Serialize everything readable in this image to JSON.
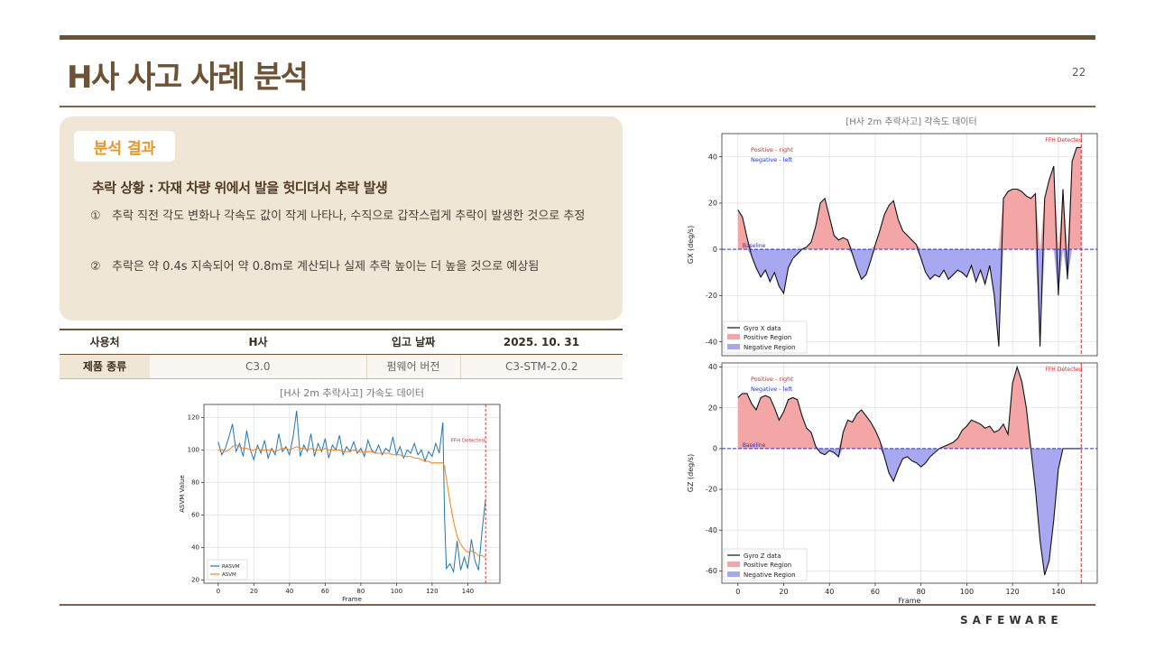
{
  "slide": {
    "title": "H사 사고 사례 분석",
    "page_number": "22",
    "brand": "SAFEWARE"
  },
  "analysis": {
    "badge": "분석 결과",
    "heading": "추락 상황 : 자재 차량 위에서 발을 헛디뎌서 추락 발생",
    "items": [
      {
        "num": "①",
        "text": "추락 직전 각도 변화나 각속도 값이 작게 나타나, 수직으로 갑작스럽게 추락이 발생한 것으로 추정"
      },
      {
        "num": "②",
        "text": "추락은 약 0.4s 지속되어 약 0.8m로 계산되나 실제 추락 높이는 더 높을 것으로 예상됨"
      }
    ]
  },
  "info_table": {
    "row1": [
      "사용처",
      "H사",
      "입고 날짜",
      "2025. 10. 31"
    ],
    "row2": [
      "제품 종류",
      "C3.0",
      "펌웨어 버전",
      "C3-STM-2.0.2"
    ]
  },
  "colors": {
    "accent_brown": "#6e5234",
    "badge_orange": "#e8962a",
    "panel_bg": "#efe6d6",
    "series_blue": "#1f77b4",
    "series_orange": "#ff7f0e",
    "positive_fill": "#f4a6a6",
    "negative_fill": "#a8a8f0"
  },
  "chart_data": [
    {
      "type": "line",
      "title": "[H사 2m 추락사고] 가속도 데이터",
      "xlabel": "Frame",
      "ylabel": "ASVM Value",
      "xlim": [
        -8,
        158
      ],
      "ylim": [
        18,
        128
      ],
      "xticks": [
        0,
        20,
        40,
        60,
        80,
        100,
        120,
        140
      ],
      "yticks": [
        20,
        40,
        60,
        80,
        100,
        120
      ],
      "grid": true,
      "legend": "bottom-left",
      "vline": {
        "x": 150,
        "label": "FFH Detected"
      },
      "x": [
        0,
        2,
        4,
        6,
        8,
        10,
        12,
        14,
        16,
        18,
        20,
        22,
        24,
        26,
        28,
        30,
        32,
        34,
        36,
        38,
        40,
        42,
        44,
        46,
        48,
        50,
        52,
        54,
        56,
        58,
        60,
        62,
        64,
        66,
        68,
        70,
        72,
        74,
        76,
        78,
        80,
        82,
        84,
        86,
        88,
        90,
        92,
        94,
        96,
        98,
        100,
        102,
        104,
        106,
        108,
        110,
        112,
        114,
        116,
        118,
        120,
        122,
        124,
        126,
        127,
        128,
        130,
        132,
        134,
        136,
        138,
        140,
        142,
        144,
        146,
        148,
        150
      ],
      "series": [
        {
          "name": "RASVM",
          "values": [
            105,
            97,
            101,
            108,
            116,
            99,
            104,
            96,
            112,
            100,
            94,
            103,
            98,
            106,
            95,
            101,
            97,
            110,
            99,
            102,
            97,
            108,
            124,
            96,
            103,
            99,
            110,
            96,
            104,
            99,
            107,
            95,
            103,
            100,
            109,
            97,
            102,
            99,
            105,
            98,
            101,
            96,
            106,
            100,
            98,
            103,
            97,
            101,
            99,
            108,
            97,
            102,
            95,
            100,
            98,
            104,
            97,
            100,
            93,
            99,
            96,
            104,
            98,
            117,
            58,
            27,
            30,
            25,
            44,
            26,
            34,
            27,
            45,
            32,
            26,
            50,
            70
          ]
        },
        {
          "name": "ASVM",
          "values": [
            100,
            100,
            99,
            100,
            102,
            103,
            102,
            101,
            101,
            100,
            100,
            101,
            100,
            100,
            100,
            100,
            99,
            100,
            101,
            101,
            100,
            101,
            102,
            101,
            101,
            100,
            101,
            100,
            100,
            100,
            101,
            100,
            100,
            100,
            100,
            99,
            99,
            99,
            100,
            99,
            99,
            99,
            99,
            99,
            98,
            98,
            98,
            98,
            98,
            97,
            97,
            97,
            96,
            96,
            96,
            95,
            95,
            94,
            93,
            93,
            92,
            92,
            92,
            92,
            90,
            82,
            68,
            56,
            47,
            42,
            39,
            37,
            38,
            37,
            35,
            35,
            34
          ]
        }
      ]
    },
    {
      "type": "area",
      "title": "[H사 2m 추락사고] 각속도 데이터",
      "xlabel": "",
      "ylabel": "GX (deg/s)",
      "xlim": [
        -7,
        157
      ],
      "ylim": [
        -46,
        50
      ],
      "yticks": [
        -40,
        -20,
        0,
        20,
        40
      ],
      "xticks": [
        0,
        20,
        40,
        60,
        80,
        100,
        120,
        140
      ],
      "grid": true,
      "legend": "bottom-left",
      "baseline": {
        "y": 0,
        "label": "Baseline"
      },
      "vline": {
        "x": 150,
        "label": "FFH Detected"
      },
      "annotations": [
        "Positive - right",
        "Negative - left"
      ],
      "x": [
        0,
        2,
        4,
        6,
        8,
        10,
        12,
        14,
        16,
        18,
        20,
        22,
        24,
        26,
        28,
        30,
        32,
        34,
        36,
        38,
        40,
        42,
        44,
        46,
        48,
        50,
        52,
        54,
        56,
        58,
        60,
        62,
        64,
        66,
        68,
        70,
        72,
        74,
        76,
        78,
        80,
        82,
        84,
        86,
        88,
        90,
        92,
        94,
        96,
        98,
        100,
        102,
        104,
        106,
        108,
        110,
        112,
        114,
        116,
        118,
        120,
        122,
        124,
        126,
        128,
        130,
        132,
        134,
        136,
        138,
        140,
        142,
        144,
        146,
        148,
        150
      ],
      "series": [
        {
          "name": "Gyro X data",
          "values": [
            17,
            14,
            5,
            -3,
            -8,
            -12,
            -9,
            -14,
            -10,
            -16,
            -19,
            -8,
            -4,
            -2,
            0,
            1,
            3,
            10,
            20,
            22,
            14,
            6,
            4,
            5,
            4,
            -2,
            -8,
            -13,
            -11,
            -5,
            2,
            8,
            15,
            19,
            21,
            13,
            8,
            6,
            4,
            2,
            -4,
            -10,
            -13,
            -11,
            -12,
            -9,
            -13,
            -11,
            -9,
            -10,
            -12,
            -7,
            -14,
            -9,
            -15,
            -7,
            -20,
            -42,
            22,
            25,
            26,
            26,
            25,
            23,
            22,
            24,
            -42,
            22,
            30,
            36,
            -20,
            26,
            -13,
            38,
            44,
            44
          ]
        }
      ]
    },
    {
      "type": "area",
      "title": "",
      "xlabel": "Frame",
      "ylabel": "GZ (deg/s)",
      "xlim": [
        -7,
        157
      ],
      "ylim": [
        -66,
        42
      ],
      "yticks": [
        -60,
        -40,
        -20,
        0,
        20,
        40
      ],
      "xticks": [
        0,
        20,
        40,
        60,
        80,
        100,
        120,
        140
      ],
      "grid": true,
      "legend": "bottom-left",
      "baseline": {
        "y": 0,
        "label": "Baseline"
      },
      "vline": {
        "x": 150,
        "label": "FFH Detected"
      },
      "annotations": [
        "Positive - right",
        "Negative - left"
      ],
      "x": [
        0,
        2,
        4,
        6,
        8,
        10,
        12,
        14,
        16,
        18,
        20,
        22,
        24,
        26,
        28,
        30,
        32,
        34,
        36,
        38,
        40,
        42,
        44,
        46,
        48,
        50,
        52,
        54,
        56,
        58,
        60,
        62,
        64,
        66,
        68,
        70,
        72,
        74,
        76,
        78,
        80,
        82,
        84,
        86,
        88,
        90,
        92,
        94,
        96,
        98,
        100,
        102,
        104,
        106,
        108,
        110,
        112,
        114,
        116,
        118,
        120,
        122,
        124,
        126,
        128,
        130,
        132,
        134,
        136,
        138,
        140,
        142,
        144,
        146,
        148,
        150
      ],
      "series": [
        {
          "name": "Gyro Z data",
          "values": [
            25,
            27,
            27,
            22,
            19,
            25,
            26,
            25,
            20,
            14,
            18,
            24,
            25,
            24,
            16,
            10,
            8,
            1,
            -2,
            -3,
            -1,
            -2,
            -4,
            8,
            14,
            13,
            17,
            19,
            16,
            13,
            9,
            4,
            -4,
            -12,
            -16,
            -10,
            -5,
            -4,
            -6,
            -7,
            -9,
            -7,
            -4,
            -2,
            0,
            1,
            2,
            3,
            5,
            9,
            11,
            14,
            13,
            12,
            10,
            11,
            8,
            9,
            12,
            7,
            32,
            40,
            33,
            20,
            0,
            -20,
            -45,
            -62,
            -55,
            -35,
            -10,
            0,
            0,
            0,
            0,
            0
          ]
        }
      ]
    }
  ]
}
